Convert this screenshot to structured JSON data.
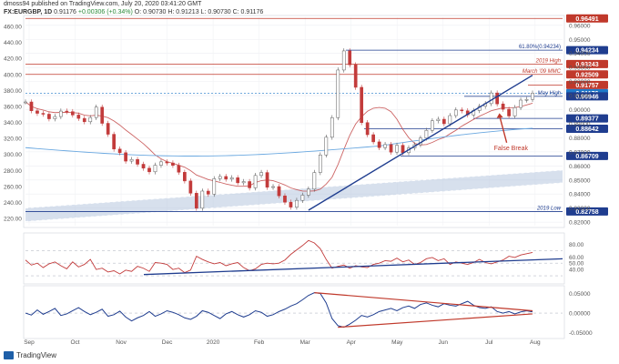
{
  "header": {
    "line1": "dmoss94 published on TradingView.com, July 20, 2020 03:41:20 GMT",
    "symbol": "FX:EURGBP, 1D",
    "last": "0.91176",
    "change": "+0.00306 (+0.34%)",
    "ohlc": "O: 0.90730 H: 0.91213 L: 0.90730 C: 0.91176"
  },
  "brand": {
    "label": "TradingView"
  },
  "colors": {
    "price": "#c23b3b",
    "trendline": "#1f3d8f",
    "ma_short": "#c44a4a",
    "ma_long": "#6aa8e0",
    "hline_red": "#c0392b",
    "hline_blue": "#1f3d8f",
    "channel_fill": "#b7c7de",
    "osc_blue": "#1f3d8f",
    "osc_red": "#c0392b"
  },
  "chart_data": [
    {
      "type": "line",
      "panel": "price",
      "x_tick_labels": [
        "Sep",
        "Oct",
        "Nov",
        "Dec",
        "2020",
        "Feb",
        "Mar",
        "Apr",
        "May",
        "Jun",
        "Jul",
        "Aug"
      ],
      "left_axis": {
        "ticks": [
          220,
          240,
          260,
          280,
          300,
          320,
          340,
          360,
          380,
          400,
          420,
          440,
          460
        ]
      },
      "right_axis": {
        "ticks": [
          "0.96000",
          "0.95000",
          "0.94000",
          "0.93000",
          "0.92000",
          "0.91000",
          "0.90000",
          "0.89000",
          "0.88000",
          "0.87000",
          "0.86000",
          "0.85000",
          "0.84000",
          "0.83000",
          "0.82000"
        ],
        "ylim": [
          0.8175,
          0.9657
        ]
      },
      "price_series": [
        0.9055,
        0.8992,
        0.8974,
        0.8968,
        0.8935,
        0.8951,
        0.899,
        0.8986,
        0.8962,
        0.8938,
        0.8914,
        0.8944,
        0.9018,
        0.8903,
        0.8825,
        0.872,
        0.8694,
        0.8634,
        0.8646,
        0.8612,
        0.8584,
        0.8558,
        0.8605,
        0.8629,
        0.8621,
        0.8604,
        0.8555,
        0.8493,
        0.8406,
        0.8299,
        0.8421,
        0.8399,
        0.8509,
        0.8525,
        0.8506,
        0.8516,
        0.848,
        0.8489,
        0.8444,
        0.8532,
        0.8553,
        0.8448,
        0.8453,
        0.8387,
        0.8342,
        0.8307,
        0.8355,
        0.8392,
        0.8435,
        0.8553,
        0.8678,
        0.8804,
        0.8943,
        0.9282,
        0.9418,
        0.9319,
        0.9159,
        0.8908,
        0.8822,
        0.8771,
        0.873,
        0.8752,
        0.8698,
        0.8747,
        0.8694,
        0.8728,
        0.8751,
        0.8798,
        0.8853,
        0.8921,
        0.8932,
        0.89,
        0.8958,
        0.8998,
        0.8992,
        0.8963,
        0.8994,
        0.9024,
        0.9043,
        0.9119,
        0.9041,
        0.9003,
        0.8955,
        0.9015,
        0.9068,
        0.9073,
        0.9118
      ],
      "horizontal_levels": [
        {
          "value": 0.96491,
          "label": "0.96491",
          "color": "red"
        },
        {
          "value": 0.94234,
          "label": "61.80%(0.94234)",
          "color": "blue"
        },
        {
          "value": 0.93243,
          "label": "0.93243",
          "note": "2019 High",
          "color": "red"
        },
        {
          "value": 0.92509,
          "label": "0.92509",
          "note": "March '09 MMC",
          "color": "red"
        },
        {
          "value": 0.91757,
          "label": "0.91757",
          "color": "red"
        },
        {
          "value": 0.91176,
          "label": "0.91176",
          "color": "blue",
          "current": true
        },
        {
          "value": 0.90946,
          "label": "0.90946",
          "note": "May High",
          "color": "blue"
        },
        {
          "value": 0.89377,
          "label": "0.89377",
          "color": "blue"
        },
        {
          "value": 0.88642,
          "label": "0.88642",
          "color": "blue"
        },
        {
          "value": 0.86709,
          "label": "0.86709",
          "color": "blue"
        },
        {
          "value": 0.82758,
          "label": "0.82758",
          "note": "2019 Low",
          "color": "blue"
        }
      ],
      "trendline_from": 0.8285,
      "trendline_to": 0.9245,
      "annotations": [
        "False Break"
      ]
    },
    {
      "type": "line",
      "panel": "rsi",
      "y_ticks": [
        80,
        60,
        50,
        40
      ],
      "y_tick_labels": [
        "80.00",
        "60.00",
        "50.00",
        "40.00"
      ],
      "ylim": [
        20,
        95
      ],
      "reference_lines": [
        70,
        50,
        30
      ],
      "values": [
        55,
        47,
        50,
        43,
        49,
        52,
        46,
        41,
        52,
        44,
        48,
        56,
        40,
        42,
        36,
        38,
        33,
        39,
        37,
        45,
        42,
        37,
        51,
        50,
        48,
        40,
        42,
        35,
        39,
        61,
        56,
        52,
        49,
        51,
        46,
        49,
        51,
        43,
        38,
        41,
        48,
        50,
        49,
        50,
        55,
        64,
        71,
        78,
        86,
        82,
        73,
        56,
        42,
        45,
        47,
        42,
        46,
        44,
        43,
        48,
        50,
        54,
        53,
        58,
        52,
        55,
        48,
        51,
        57,
        59,
        54,
        57,
        48,
        52,
        50,
        48,
        51,
        56,
        51,
        49,
        52,
        55,
        61,
        59,
        63,
        65,
        67
      ],
      "trendline_from": 32,
      "trendline_to": 57
    },
    {
      "type": "line",
      "panel": "oscillator",
      "y_ticks": [
        0.05,
        0.0,
        -0.05
      ],
      "y_tick_labels": [
        "0.05000",
        "0.00000",
        "-0.05000"
      ],
      "ylim": [
        -0.06,
        0.065
      ],
      "values": [
        0.0,
        -0.005,
        0.008,
        -0.003,
        0.004,
        0.012,
        -0.006,
        -0.002,
        0.006,
        0.014,
        0.004,
        -0.004,
        0.002,
        0.01,
        -0.008,
        -0.004,
        0.005,
        -0.01,
        -0.02,
        -0.012,
        -0.006,
        0.004,
        -0.008,
        -0.002,
        0.006,
        0.002,
        -0.004,
        -0.012,
        -0.016,
        -0.008,
        0.006,
        0.002,
        -0.006,
        -0.014,
        -0.002,
        0.004,
        -0.004,
        -0.01,
        -0.004,
        0.006,
        0.002,
        -0.008,
        -0.004,
        0.004,
        0.01,
        0.018,
        0.024,
        0.034,
        0.045,
        0.052,
        0.05,
        0.026,
        -0.014,
        -0.032,
        -0.036,
        -0.028,
        -0.018,
        -0.006,
        -0.01,
        -0.004,
        0.004,
        0.008,
        0.012,
        0.006,
        0.014,
        0.018,
        0.012,
        0.022,
        0.026,
        0.02,
        0.016,
        0.024,
        0.02,
        0.018,
        0.024,
        0.03,
        0.02,
        0.014,
        0.012,
        0.016,
        0.004,
        0.0,
        0.004,
        -0.002,
        0.003,
        0.006,
        0.003
      ],
      "triangle_upper": [
        0.052,
        0.006
      ],
      "triangle_lower": [
        -0.036,
        -0.002
      ]
    }
  ]
}
